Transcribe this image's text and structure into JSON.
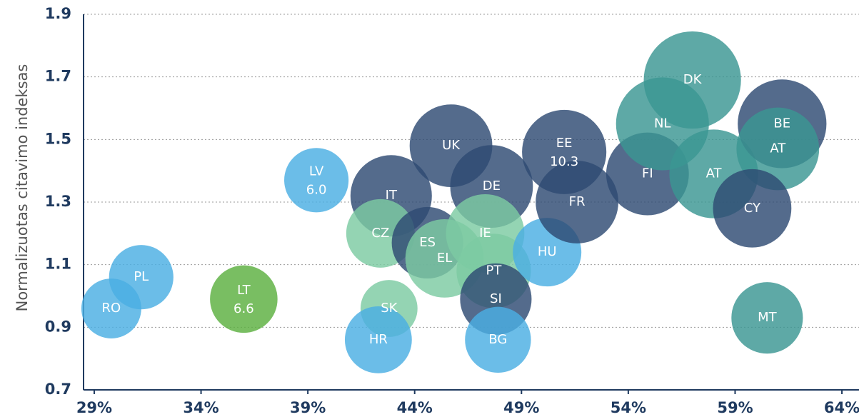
{
  "chart_data": {
    "type": "bubble",
    "y_label": "Normalizuotas citavimo indeksas",
    "labels": [
      "RO",
      "PL",
      "LT",
      "LV",
      "IT",
      "CZ",
      "SK",
      "HR",
      "ES",
      "EL",
      "UK",
      "DE",
      "IE",
      "PT",
      "SI",
      "BG",
      "HU",
      "EE",
      "FR",
      "FI",
      "NL",
      "DK",
      "AT",
      "BE",
      "AT",
      "CY",
      "MT"
    ],
    "x": [
      29.8,
      31.2,
      36.0,
      39.4,
      42.9,
      42.4,
      42.8,
      42.3,
      44.6,
      45.4,
      45.7,
      47.6,
      47.3,
      47.7,
      47.8,
      47.9,
      50.2,
      51.0,
      51.6,
      54.9,
      55.6,
      57.0,
      58.0,
      61.2,
      61.0,
      59.8,
      60.5
    ],
    "values": [
      0.96,
      1.06,
      0.99,
      1.37,
      1.32,
      1.2,
      0.96,
      0.86,
      1.17,
      1.12,
      1.48,
      1.35,
      1.2,
      1.08,
      0.99,
      0.86,
      1.14,
      1.46,
      1.3,
      1.39,
      1.55,
      1.69,
      1.39,
      1.55,
      1.47,
      1.28,
      0.93
    ],
    "sizes": [
      5.2,
      6.0,
      6.6,
      6.0,
      9.6,
      6.8,
      4.7,
      6.5,
      7.4,
      8.9,
      9.9,
      9.9,
      8.9,
      8.0,
      7.4,
      6.3,
      6.8,
      10.3,
      9.9,
      9.9,
      12.5,
      13.7,
      11.4,
      11.4,
      9.9,
      8.9,
      7.4
    ],
    "size_labels": [
      null,
      null,
      "6.6",
      "6.0",
      null,
      null,
      null,
      null,
      null,
      null,
      null,
      null,
      null,
      null,
      null,
      null,
      null,
      "10.3",
      null,
      null,
      null,
      null,
      null,
      null,
      null,
      null,
      null
    ],
    "colors": [
      "#4aaee3",
      "#4aaee3",
      "#5cb040",
      "#4aaee3",
      "#2e4a73",
      "#7ccaa2",
      "#7ccaa2",
      "#4aaee3",
      "#2e4a73",
      "#7ccaa2",
      "#2e4a73",
      "#2e4a73",
      "#7ccaa2",
      "#7ccaa2",
      "#2e4a73",
      "#4aaee3",
      "#4aaee3",
      "#2e4a73",
      "#2e4a73",
      "#2e4a73",
      "#3a9692",
      "#3a9692",
      "#3a9692",
      "#2e4a73",
      "#3a9692",
      "#2e4a73",
      "#3a9692"
    ],
    "xlim": [
      28.5,
      64.8
    ],
    "xticks": [
      {
        "value": 29,
        "label": "29%"
      },
      {
        "value": 34,
        "label": "34%"
      },
      {
        "value": 39,
        "label": "39%"
      },
      {
        "value": 44,
        "label": "44%"
      },
      {
        "value": 49,
        "label": "49%"
      },
      {
        "value": 54,
        "label": "54%"
      },
      {
        "value": 59,
        "label": "59%"
      },
      {
        "value": 64,
        "label": "64%"
      }
    ],
    "ylim": [
      0.7,
      1.9
    ],
    "yticks": [
      0.7,
      0.9,
      1.1,
      1.3,
      1.5,
      1.7,
      1.9
    ],
    "grid": true
  }
}
